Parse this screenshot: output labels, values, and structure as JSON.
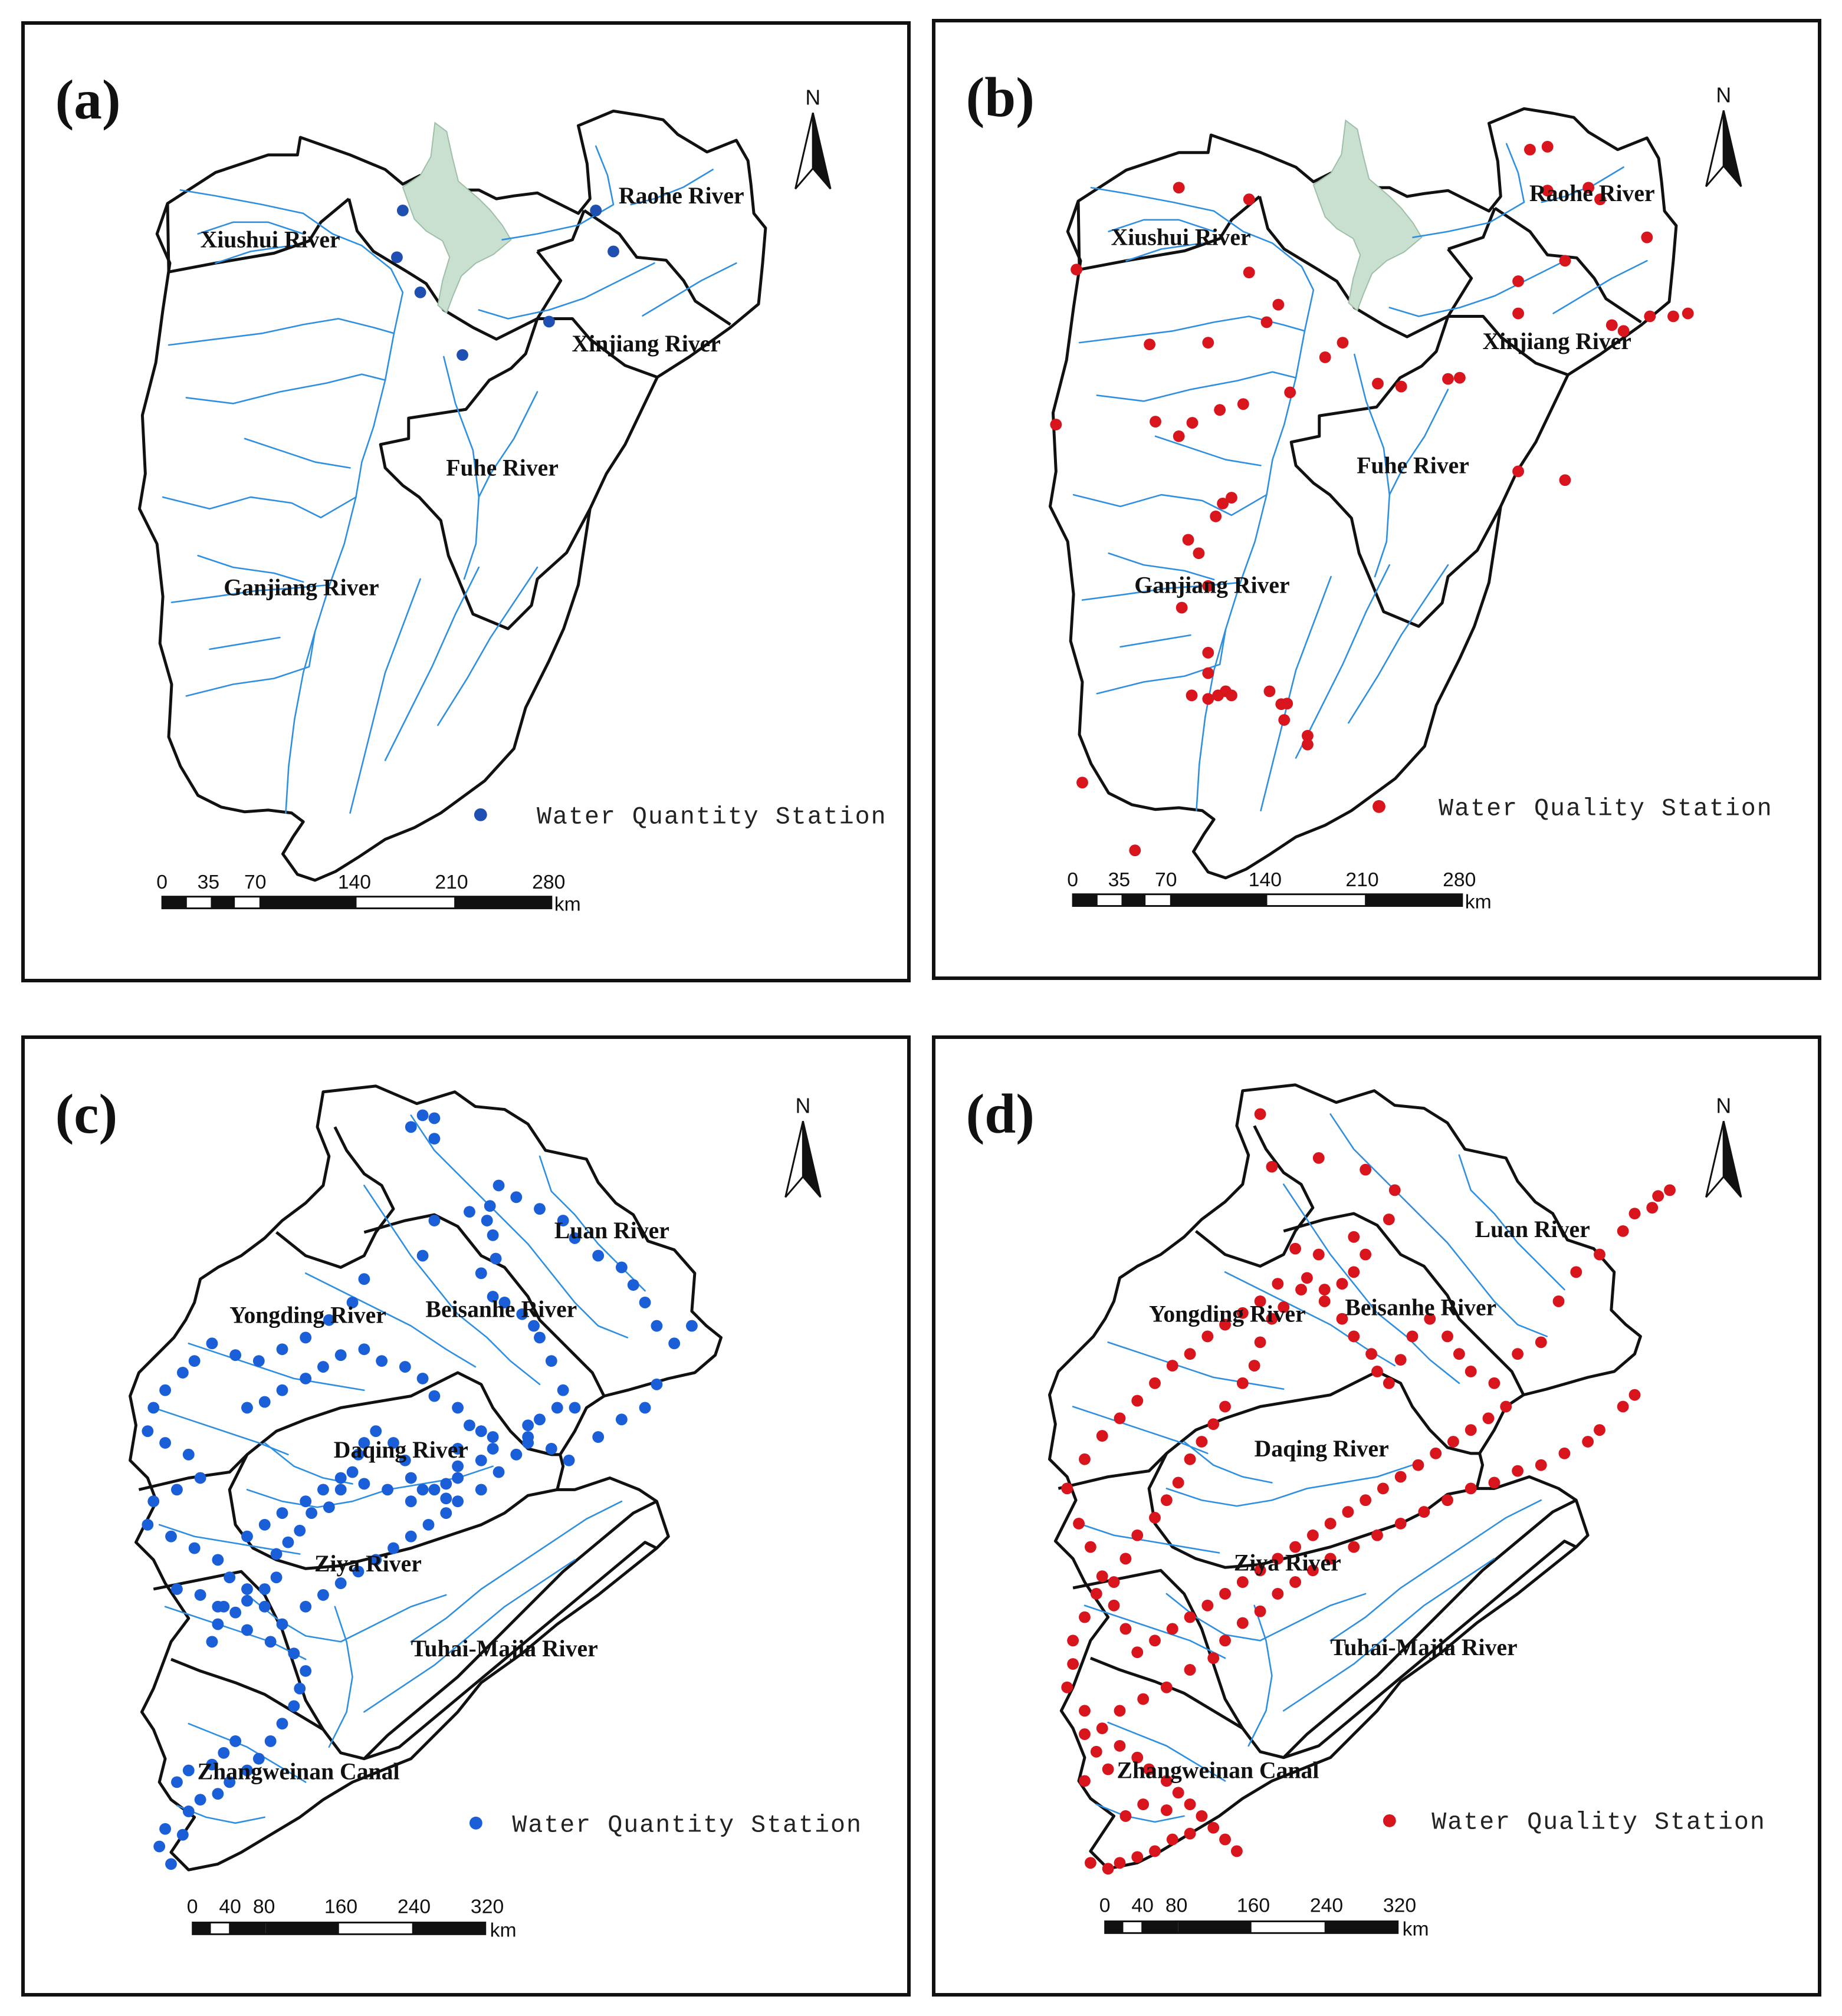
{
  "colors": {
    "quantity_station": "#1f4fb0",
    "quantity_station_hai": "#1a5fd8",
    "quality_station": "#d8141c",
    "river": "#2e8fe0",
    "lake": "#c9dfcf",
    "boundary": "#111111"
  },
  "north_label": "N",
  "scale_unit": "km",
  "panels": {
    "a": {
      "letter": "(a)",
      "legend": "Water Quantity Station",
      "scale_ticks": [
        "0",
        "35",
        "70",
        "140",
        "210",
        "280"
      ],
      "labels": [
        "Xiushui River",
        "Raohe River",
        "Xinjiang River",
        "Fuhe River",
        "Ganjiang River"
      ]
    },
    "b": {
      "letter": "(b)",
      "legend": "Water Quality Station",
      "scale_ticks": [
        "0",
        "35",
        "70",
        "140",
        "210",
        "280"
      ],
      "labels": [
        "Xiushui River",
        "Raohe River",
        "Xinjiang River",
        "Fuhe River",
        "Ganjiang River"
      ]
    },
    "c": {
      "letter": "(c)",
      "legend": "Water Quantity Station",
      "scale_ticks": [
        "0",
        "40",
        "80",
        "160",
        "240",
        "320"
      ],
      "labels": [
        "Luan River",
        "Yongding River",
        "Beisanhe River",
        "Daqing River",
        "Ziya River",
        "Tuhai-Majia River",
        "Zhangweinan Canal"
      ]
    },
    "d": {
      "letter": "(d)",
      "legend": "Water Quality Station",
      "scale_ticks": [
        "0",
        "40",
        "80",
        "160",
        "240",
        "320"
      ],
      "labels": [
        "Luan River",
        "Yongding River",
        "Beisanhe River",
        "Daqing River",
        "Ziya River",
        "Tuhai-Majia River",
        "Zhangweinan Canal"
      ]
    }
  }
}
